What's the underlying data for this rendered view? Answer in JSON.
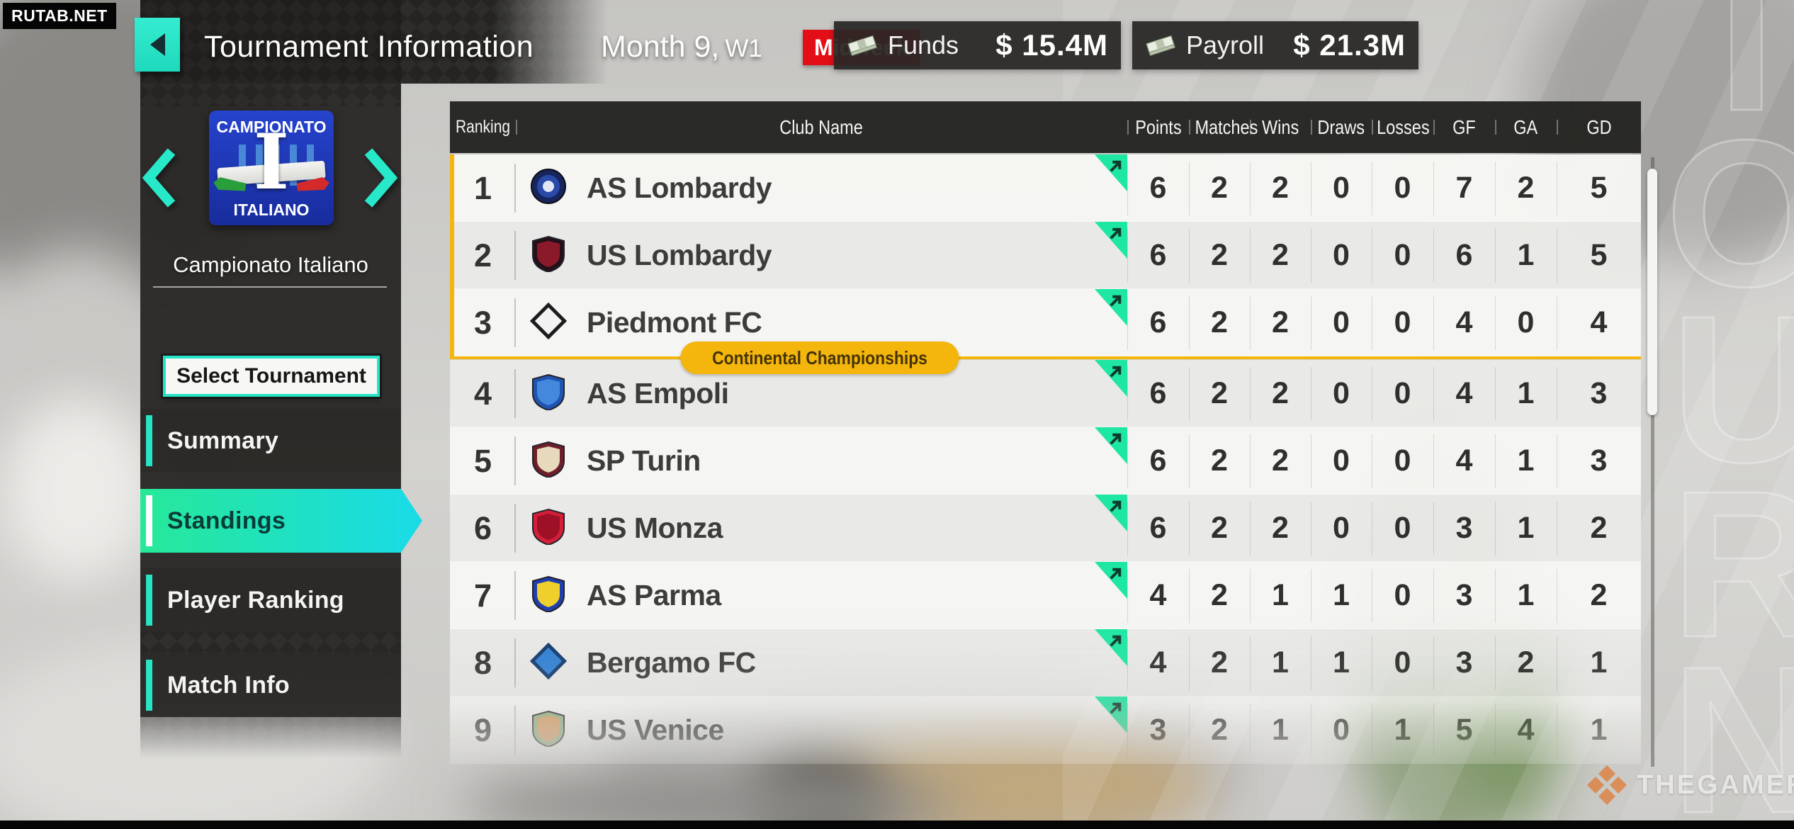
{
  "watermarks": {
    "top_left": "RUTAB.NET",
    "bottom_right": "THEGAMER"
  },
  "background": {
    "ghost_text": "TOURN"
  },
  "top_bar": {
    "title": "Tournament Information",
    "calendar": {
      "month": "Month 9,",
      "week": "W1",
      "phase": "Midweek"
    },
    "funds": {
      "label": "Funds",
      "value": "$ 15.4M"
    },
    "payroll": {
      "label": "Payroll",
      "value": "$ 21.3M"
    }
  },
  "sidebar": {
    "logo": {
      "line1": "CAMPIONATO",
      "line2": "ITALIANO",
      "monogram": "I"
    },
    "tournament_name": "Campionato Italiano",
    "select_button": "Select Tournament",
    "menu": [
      {
        "label": "Summary",
        "active": false
      },
      {
        "label": "Standings",
        "active": true
      },
      {
        "label": "Player Ranking",
        "active": false
      },
      {
        "label": "Match Info",
        "active": false
      }
    ]
  },
  "table": {
    "columns": [
      "Ranking",
      "Club Name",
      "Points",
      "Matches",
      "Wins",
      "Draws",
      "Losses",
      "GF",
      "GA",
      "GD"
    ],
    "qualification_marker": {
      "label": "Continental Championships",
      "after_rank": 3
    },
    "rows": [
      {
        "rank": 1,
        "club": "AS Lombardy",
        "trend": "up",
        "badge": {
          "shape": "circle",
          "c1": "#16255c",
          "c2": "#2a49a8"
        },
        "stats": [
          6,
          2,
          2,
          0,
          0,
          7,
          2,
          5
        ]
      },
      {
        "rank": 2,
        "club": "US Lombardy",
        "trend": "up",
        "badge": {
          "shape": "shield",
          "c1": "#241018",
          "c2": "#8a1a2a"
        },
        "stats": [
          6,
          2,
          2,
          0,
          0,
          6,
          1,
          5
        ]
      },
      {
        "rank": 3,
        "club": "Piedmont FC",
        "trend": "up",
        "badge": {
          "shape": "diamond",
          "c1": "#f2f2f2",
          "c2": "#1c1c1c"
        },
        "stats": [
          6,
          2,
          2,
          0,
          0,
          4,
          0,
          4
        ]
      },
      {
        "rank": 4,
        "club": "AS Empoli",
        "trend": "up",
        "badge": {
          "shape": "shield",
          "c1": "#1f54b0",
          "c2": "#4488dd"
        },
        "stats": [
          6,
          2,
          2,
          0,
          0,
          4,
          1,
          3
        ]
      },
      {
        "rank": 5,
        "club": "SP Turin",
        "trend": "up",
        "badge": {
          "shape": "shield",
          "c1": "#6e1f2a",
          "c2": "#e6d9bc"
        },
        "stats": [
          6,
          2,
          2,
          0,
          0,
          4,
          1,
          3
        ]
      },
      {
        "rank": 6,
        "club": "US Monza",
        "trend": "up",
        "badge": {
          "shape": "shield",
          "c1": "#d41f38",
          "c2": "#9e1026"
        },
        "stats": [
          6,
          2,
          2,
          0,
          0,
          3,
          1,
          2
        ]
      },
      {
        "rank": 7,
        "club": "AS Parma",
        "trend": "up",
        "badge": {
          "shape": "shield",
          "c1": "#1f3fae",
          "c2": "#efcf2b"
        },
        "stats": [
          4,
          2,
          1,
          1,
          0,
          3,
          1,
          2
        ]
      },
      {
        "rank": 8,
        "club": "Bergamo FC",
        "trend": "up",
        "badge": {
          "shape": "diamond",
          "c1": "#2f7fd4",
          "c2": "#123a6e"
        },
        "stats": [
          4,
          2,
          1,
          1,
          0,
          3,
          2,
          1
        ]
      },
      {
        "rank": 9,
        "club": "US Venice",
        "trend": "up",
        "badge": {
          "shape": "shield",
          "c1": "#8fae7a",
          "c2": "#d89a5c"
        },
        "stats": [
          3,
          2,
          1,
          0,
          1,
          5,
          4,
          1
        ]
      }
    ]
  },
  "colors": {
    "accent_teal": "#27e4c6",
    "active_gradient_left": "#27e898",
    "active_gradient_right": "#19dbe8",
    "qualification_yellow": "#f4b60d",
    "midweek_red": "#e30e16",
    "trend_green": "#1ee6a3"
  }
}
